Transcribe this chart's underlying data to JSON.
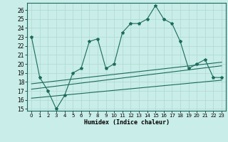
{
  "xlabel": "Humidex (Indice chaleur)",
  "x_ticks": [
    0,
    1,
    2,
    3,
    4,
    5,
    6,
    7,
    8,
    9,
    10,
    11,
    12,
    13,
    14,
    15,
    16,
    17,
    18,
    19,
    20,
    21,
    22,
    23
  ],
  "y_ticks": [
    15,
    16,
    17,
    18,
    19,
    20,
    21,
    22,
    23,
    24,
    25,
    26
  ],
  "xlim": [
    -0.5,
    23.5
  ],
  "ylim": [
    14.8,
    26.8
  ],
  "bg_color": "#c9ede9",
  "grid_color": "#b0d8d2",
  "line_color": "#1a6b5a",
  "curve1_x": [
    0,
    1,
    2,
    3,
    4,
    5,
    6,
    7,
    8,
    9,
    10,
    11,
    12,
    13,
    14,
    15,
    16,
    17,
    18,
    19,
    20,
    21,
    22,
    23
  ],
  "curve1_y": [
    23.0,
    18.5,
    17.0,
    15.0,
    16.5,
    19.0,
    19.5,
    22.5,
    22.8,
    19.5,
    20.0,
    23.5,
    24.5,
    24.5,
    25.0,
    26.5,
    25.0,
    24.5,
    22.5,
    19.5,
    20.0,
    20.5,
    18.5,
    18.5
  ],
  "curve2_x": [
    0,
    23
  ],
  "curve2_y": [
    17.2,
    19.8
  ],
  "curve3_x": [
    0,
    23
  ],
  "curve3_y": [
    17.8,
    20.2
  ],
  "curve4_x": [
    0,
    23
  ],
  "curve4_y": [
    16.2,
    18.2
  ]
}
